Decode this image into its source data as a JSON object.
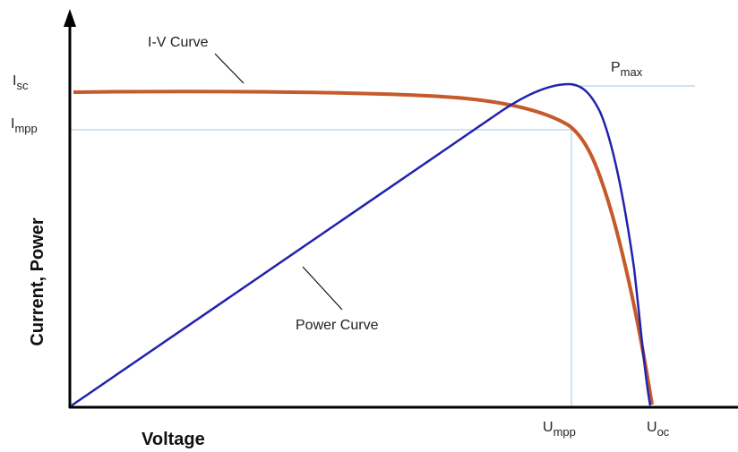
{
  "labels": {
    "iv_curve": "I-V Curve",
    "power_curve": "Power Curve",
    "pmax": {
      "main": "P",
      "sub": "max"
    },
    "isc": {
      "main": "I",
      "sub": "sc"
    },
    "impp": {
      "main": "I",
      "sub": "mpp"
    },
    "umpp": {
      "main": "U",
      "sub": "mpp"
    },
    "uoc": {
      "main": "U",
      "sub": "oc"
    },
    "y_axis": "Current, Power",
    "x_axis": "Voltage"
  }
}
